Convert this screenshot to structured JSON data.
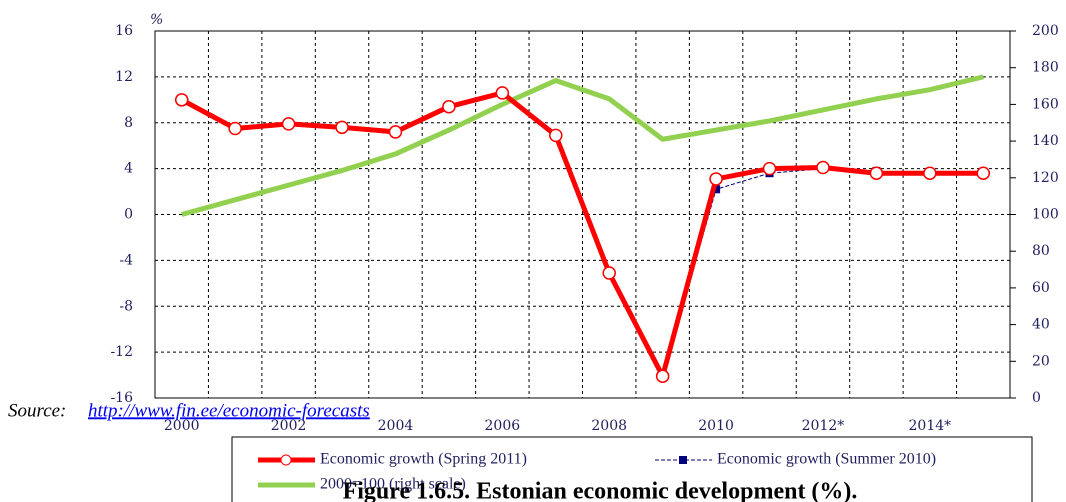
{
  "chart_data": {
    "type": "line",
    "unit_label": "%",
    "categories": [
      "2000",
      null,
      "2002",
      null,
      "2004",
      null,
      "2006",
      null,
      "2008",
      null,
      "2010",
      null,
      "2012*",
      null,
      "2014*",
      null
    ],
    "series": [
      {
        "name": "Economic growth (Spring 2011)",
        "color": "#ff0000",
        "values": [
          10,
          7.5,
          7.9,
          7.6,
          7.2,
          9.4,
          10.6,
          6.9,
          -5.1,
          -14.1,
          3.1,
          4.0,
          4.1,
          3.6,
          3.6,
          3.6
        ]
      },
      {
        "name": "Economic growth (Summer 2010)",
        "color": "#000080",
        "values": [
          null,
          null,
          null,
          null,
          null,
          null,
          null,
          null,
          null,
          -14.1,
          2.2,
          3.6,
          4.0,
          3.8,
          3.5,
          null
        ]
      },
      {
        "name": "2000=100 (right scale)",
        "color": "#92d050",
        "axis": "y2",
        "values": [
          100,
          108,
          116,
          124,
          133,
          146,
          160,
          173,
          163,
          141,
          146,
          151,
          157,
          163,
          168,
          175
        ]
      }
    ],
    "ylim": [
      -16,
      16
    ],
    "yticks": [
      -16,
      -12,
      -8,
      -4,
      0,
      4,
      8,
      12,
      16
    ],
    "y2lim": [
      0,
      200
    ],
    "y2ticks": [
      0,
      20,
      40,
      60,
      80,
      100,
      120,
      140,
      160,
      180,
      200
    ],
    "grid": true,
    "source_label": "Source:",
    "source_url": "http://www.fin.ee/economic-forecasts",
    "caption": "Figure 1.6.5. Estonian economic development (%)."
  }
}
